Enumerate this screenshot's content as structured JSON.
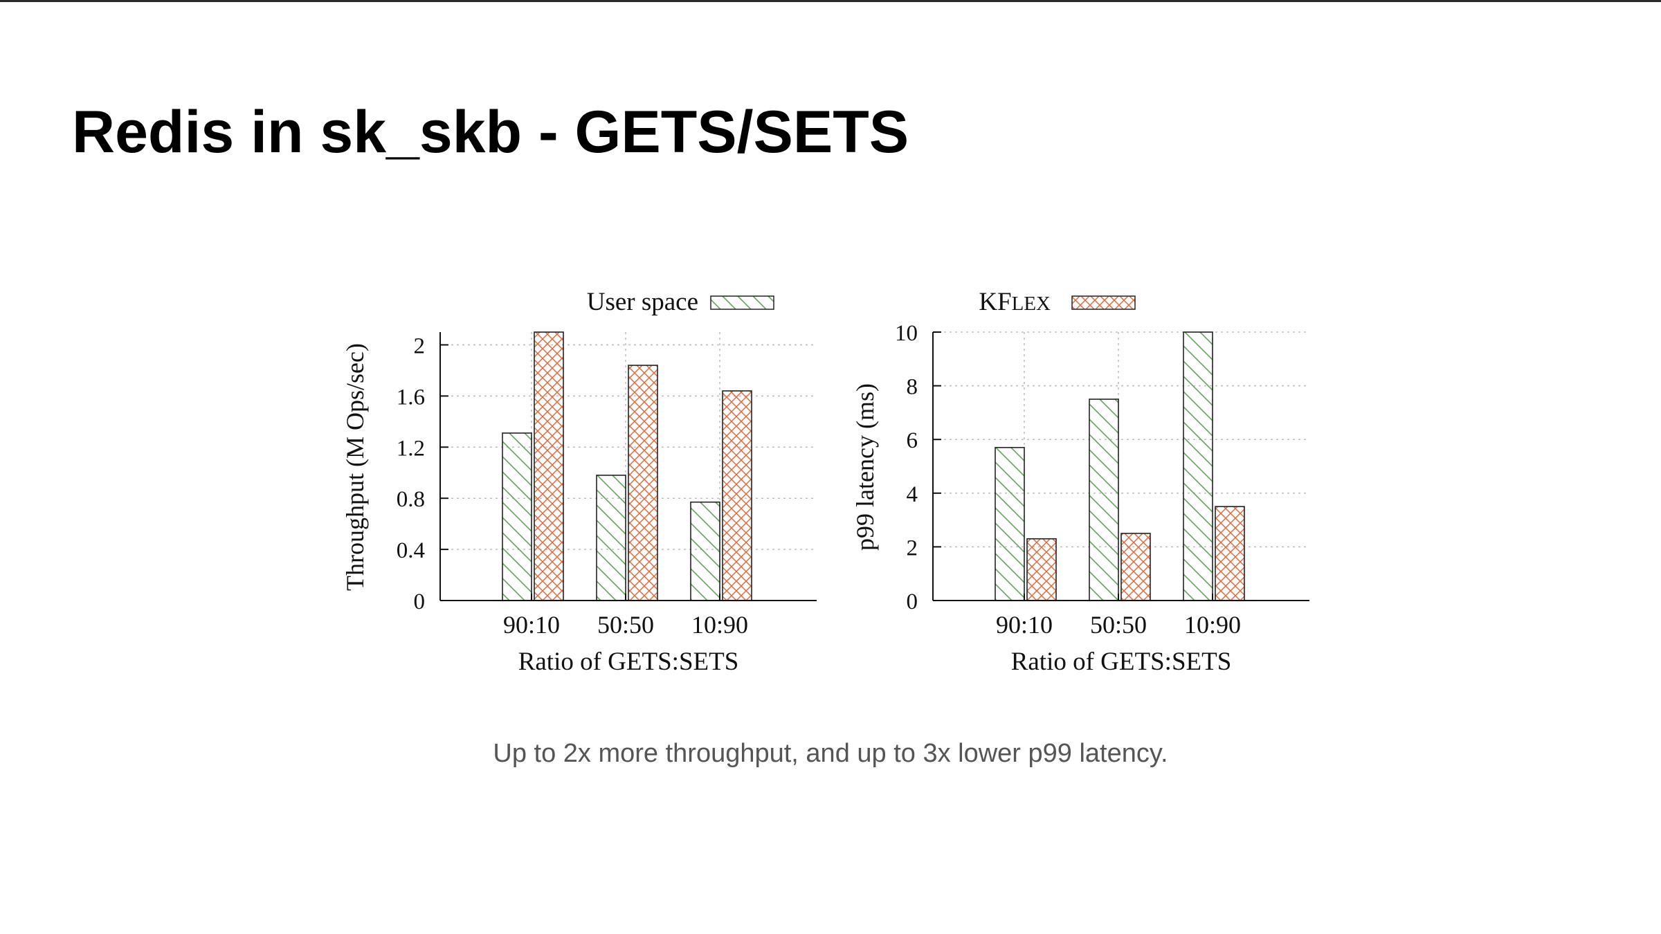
{
  "slide": {
    "title": "Redis in sk_skb - GETS/SETS",
    "caption": "Up to 2x more throughput, and up to 3x lower p99 latency."
  },
  "colors": {
    "user_space": "#5aa84f",
    "kflex": "#e0683a",
    "axis": "#111111",
    "grid": "#bdbdbd",
    "bar_edge": "#222222"
  },
  "chart_data": [
    {
      "type": "bar",
      "legend_entry": "User space",
      "legend_position": "top",
      "categories": [
        "90:10",
        "50:50",
        "10:90"
      ],
      "series": [
        {
          "name": "User space",
          "values": [
            1.31,
            0.98,
            0.77
          ]
        },
        {
          "name": "KFLEX",
          "values": [
            2.1,
            1.84,
            1.64
          ]
        }
      ],
      "xlabel": "Ratio of GETS:SETS",
      "ylabel": "Throughput (M Ops/sec)",
      "ylim": [
        0,
        2.1
      ],
      "yticks": [
        0,
        0.4,
        0.8,
        1.2,
        1.6,
        2
      ],
      "ytick_labels": [
        "0",
        "0.4",
        "0.8",
        "1.2",
        "1.6",
        "2"
      ],
      "grid": true
    },
    {
      "type": "bar",
      "legend_entry": "KFLEX",
      "legend_position": "top",
      "categories": [
        "90:10",
        "50:50",
        "10:90"
      ],
      "series": [
        {
          "name": "User space",
          "values": [
            5.7,
            7.5,
            10.0
          ]
        },
        {
          "name": "KFLEX",
          "values": [
            2.3,
            2.5,
            3.5
          ]
        }
      ],
      "xlabel": "Ratio of GETS:SETS",
      "ylabel": "p99 latency (ms)",
      "ylim": [
        0,
        10
      ],
      "yticks": [
        0,
        2,
        4,
        6,
        8,
        10
      ],
      "ytick_labels": [
        "0",
        "2",
        "4",
        "6",
        "8",
        "10"
      ],
      "grid": true
    }
  ]
}
